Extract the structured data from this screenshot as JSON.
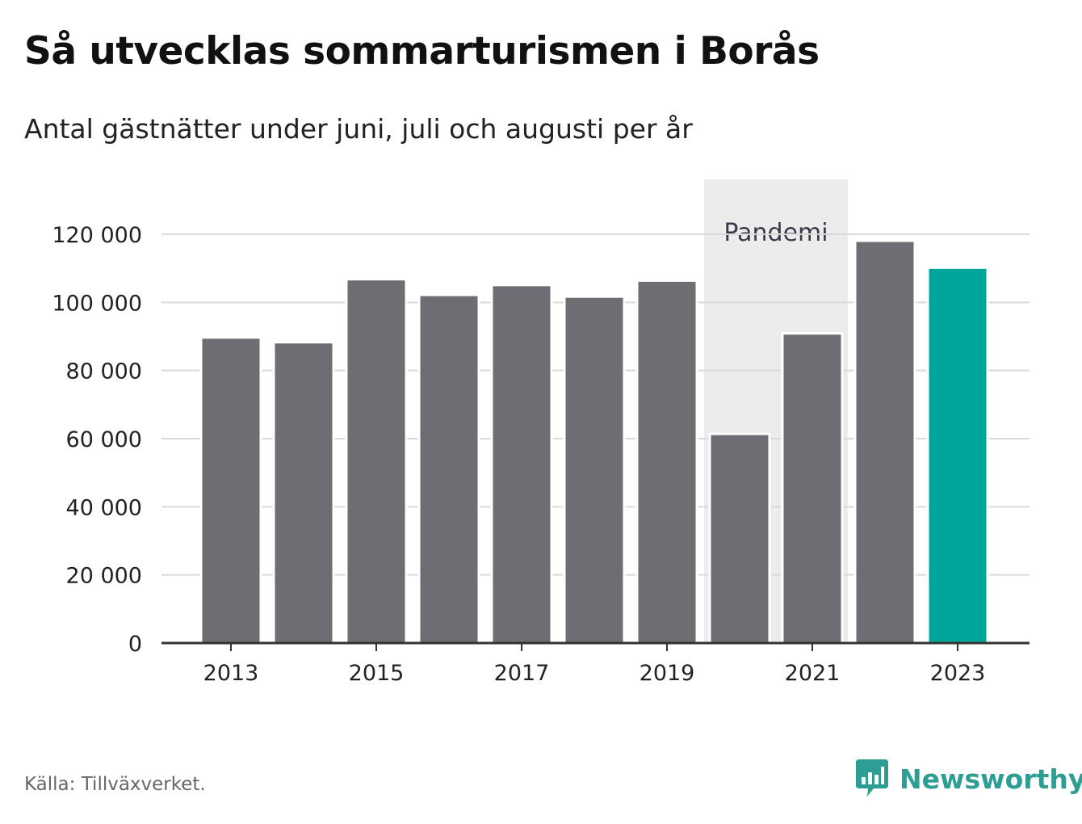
{
  "title": "Så utvecklas sommarturismen i Borås",
  "subtitle": "Antal gästnätter under juni, juli och augusti per år",
  "source": "Källa: Tillväxverket.",
  "brand": "Newsworthy",
  "colors": {
    "bar": "#6e6d73",
    "highlight": "#00a59a",
    "shade": "#ececec",
    "grid": "#d9d9d9",
    "axis": "#333333",
    "brand": "#2e9d93"
  },
  "chart_data": {
    "type": "bar",
    "categories": [
      "2013",
      "2014",
      "2015",
      "2016",
      "2017",
      "2018",
      "2019",
      "2020",
      "2021",
      "2022",
      "2023"
    ],
    "values": [
      89700,
      88300,
      106800,
      102200,
      105100,
      101700,
      106400,
      61400,
      90900,
      118100,
      110200
    ],
    "highlight_index": 10,
    "x_tick_labels": [
      "2013",
      "2015",
      "2017",
      "2019",
      "2021",
      "2023"
    ],
    "y_ticks": [
      0,
      20000,
      40000,
      60000,
      80000,
      100000,
      120000
    ],
    "y_tick_labels": [
      "0",
      "20 000",
      "40 000",
      "60 000",
      "80 000",
      "100 000",
      "120 000"
    ],
    "ylim": [
      0,
      120000
    ],
    "grid": true,
    "annotation": {
      "label": "Pandemi",
      "from": "2020",
      "to": "2021"
    }
  }
}
